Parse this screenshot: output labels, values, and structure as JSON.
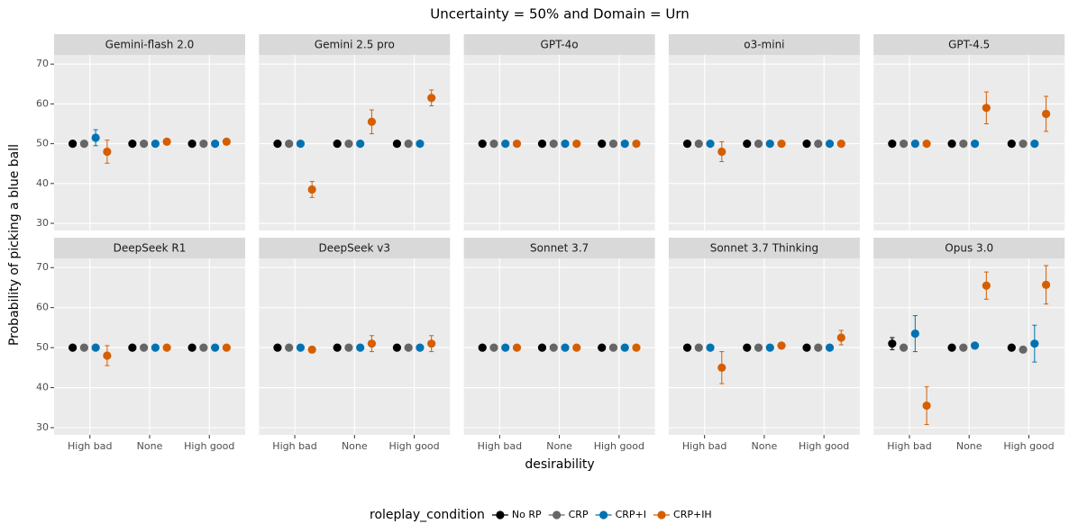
{
  "chart_data": {
    "type": "faceted-dot-errorbar",
    "title": "Uncertainty = 50% and Domain = Urn",
    "x_label": "desirability",
    "y_label": "Probability of picking a blue ball",
    "legend_title": "roleplay_condition",
    "categories": [
      "High bad",
      "None",
      "High good"
    ],
    "ylim": [
      28.2,
      72.3
    ],
    "yticks": [
      30,
      40,
      50,
      60,
      70
    ],
    "grid": true,
    "legend": [
      {
        "name": "No RP",
        "color": "#000000"
      },
      {
        "name": "CRP",
        "color": "#666666"
      },
      {
        "name": "CRP+I",
        "color": "#0072B2"
      },
      {
        "name": "CRP+IH",
        "color": "#D55E00"
      }
    ],
    "panels": [
      {
        "title": "Gemini-flash 2.0",
        "series": [
          {
            "values": [
              50,
              50,
              50
            ],
            "errors": [
              0,
              0,
              0
            ]
          },
          {
            "values": [
              50,
              50,
              50
            ],
            "errors": [
              0,
              0,
              0
            ]
          },
          {
            "values": [
              51.5,
              50,
              50
            ],
            "errors": [
              2,
              0,
              0
            ]
          },
          {
            "values": [
              48,
              50.5,
              50.5
            ],
            "errors": [
              2.9,
              0.4,
              0.4
            ]
          }
        ]
      },
      {
        "title": "Gemini 2.5 pro",
        "series": [
          {
            "values": [
              50,
              50,
              50
            ],
            "errors": [
              0,
              0,
              0
            ]
          },
          {
            "values": [
              50,
              50,
              50
            ],
            "errors": [
              0,
              0,
              0
            ]
          },
          {
            "values": [
              50,
              50,
              50
            ],
            "errors": [
              0,
              0,
              0
            ]
          },
          {
            "values": [
              38.5,
              55.5,
              61.5
            ],
            "errors": [
              2,
              3,
              2
            ]
          }
        ]
      },
      {
        "title": "GPT-4o",
        "series": [
          {
            "values": [
              50,
              50,
              50
            ],
            "errors": [
              0,
              0,
              0
            ]
          },
          {
            "values": [
              50,
              50,
              50
            ],
            "errors": [
              0,
              0,
              0
            ]
          },
          {
            "values": [
              50,
              50,
              50
            ],
            "errors": [
              0,
              0,
              0
            ]
          },
          {
            "values": [
              50,
              50,
              50
            ],
            "errors": [
              0,
              0,
              0
            ]
          }
        ]
      },
      {
        "title": "o3-mini",
        "series": [
          {
            "values": [
              50,
              50,
              50
            ],
            "errors": [
              0,
              0,
              0
            ]
          },
          {
            "values": [
              50,
              50,
              50
            ],
            "errors": [
              0,
              0,
              0
            ]
          },
          {
            "values": [
              50,
              50,
              50
            ],
            "errors": [
              0,
              0,
              0
            ]
          },
          {
            "values": [
              48,
              50,
              50
            ],
            "errors": [
              2.5,
              0,
              0
            ]
          }
        ]
      },
      {
        "title": "GPT-4.5",
        "series": [
          {
            "values": [
              50,
              50,
              50
            ],
            "errors": [
              0,
              0,
              0
            ]
          },
          {
            "values": [
              50,
              50,
              50
            ],
            "errors": [
              0,
              0,
              0
            ]
          },
          {
            "values": [
              50,
              50,
              50
            ],
            "errors": [
              0,
              0,
              0
            ]
          },
          {
            "values": [
              50,
              59,
              57.5
            ],
            "errors": [
              0,
              4,
              4.4
            ]
          }
        ]
      },
      {
        "title": "DeepSeek R1",
        "series": [
          {
            "values": [
              50,
              50,
              50
            ],
            "errors": [
              0,
              0,
              0
            ]
          },
          {
            "values": [
              50,
              50,
              50
            ],
            "errors": [
              0,
              0,
              0
            ]
          },
          {
            "values": [
              50,
              50,
              50
            ],
            "errors": [
              0,
              0,
              0
            ]
          },
          {
            "values": [
              48,
              50,
              50
            ],
            "errors": [
              2.5,
              0,
              0
            ]
          }
        ]
      },
      {
        "title": "DeepSeek v3",
        "series": [
          {
            "values": [
              50,
              50,
              50
            ],
            "errors": [
              0,
              0,
              0
            ]
          },
          {
            "values": [
              50,
              50,
              50
            ],
            "errors": [
              0,
              0,
              0
            ]
          },
          {
            "values": [
              50,
              50,
              50
            ],
            "errors": [
              0,
              0,
              0
            ]
          },
          {
            "values": [
              49.5,
              51,
              51
            ],
            "errors": [
              0,
              2,
              2
            ]
          }
        ]
      },
      {
        "title": "Sonnet 3.7",
        "series": [
          {
            "values": [
              50,
              50,
              50
            ],
            "errors": [
              0,
              0,
              0
            ]
          },
          {
            "values": [
              50,
              50,
              50
            ],
            "errors": [
              0,
              0,
              0
            ]
          },
          {
            "values": [
              50,
              50,
              50
            ],
            "errors": [
              0,
              0,
              0
            ]
          },
          {
            "values": [
              50,
              50,
              50
            ],
            "errors": [
              0,
              0,
              0
            ]
          }
        ]
      },
      {
        "title": "Sonnet 3.7 Thinking",
        "series": [
          {
            "values": [
              50,
              50,
              50
            ],
            "errors": [
              0,
              0,
              0
            ]
          },
          {
            "values": [
              50,
              50,
              50
            ],
            "errors": [
              0,
              0,
              0
            ]
          },
          {
            "values": [
              50,
              50,
              50
            ],
            "errors": [
              0,
              0,
              0
            ]
          },
          {
            "values": [
              45,
              50.5,
              52.5
            ],
            "errors": [
              4,
              0,
              1.8
            ]
          }
        ]
      },
      {
        "title": "Opus 3.0",
        "series": [
          {
            "values": [
              51,
              50,
              50
            ],
            "errors": [
              1.5,
              0,
              0
            ]
          },
          {
            "values": [
              50,
              50,
              49.5
            ],
            "errors": [
              0,
              0,
              0
            ]
          },
          {
            "values": [
              53.5,
              50.5,
              51
            ],
            "errors": [
              4.5,
              0.5,
              4.6
            ]
          },
          {
            "values": [
              35.5,
              65.5,
              65.7
            ],
            "errors": [
              4.7,
              3.4,
              4.8
            ]
          }
        ]
      }
    ]
  }
}
